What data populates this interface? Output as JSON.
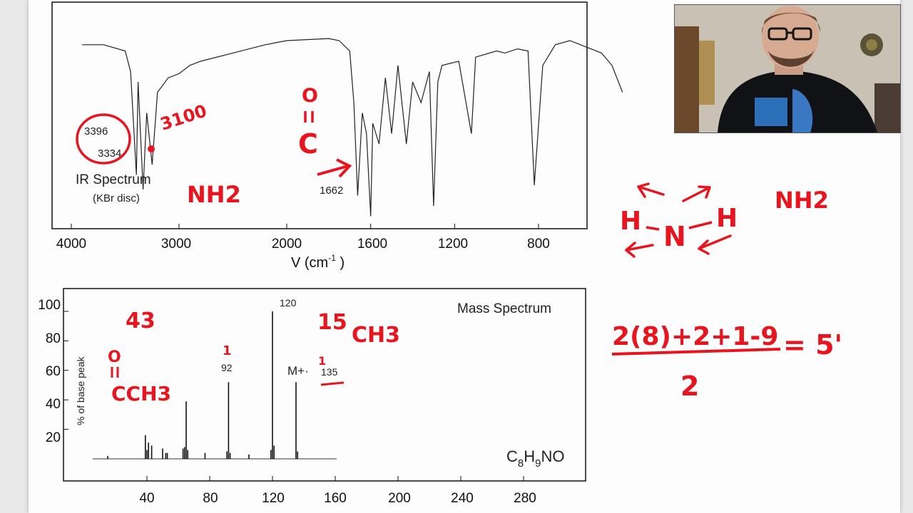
{
  "colors": {
    "ink": "#e8141e",
    "axis": "#111111",
    "spectrum": "#222222",
    "paper": "#fdfdfd"
  },
  "ir": {
    "title": "IR Spectrum",
    "subtitle": "(KBr disc)",
    "xlabel": "V (cm-1)",
    "ticks": [
      "4000",
      "3000",
      "2000",
      "1600",
      "1200",
      "800"
    ],
    "peak_labels": [
      "3396",
      "3334",
      "1662"
    ]
  },
  "ms": {
    "title": "Mass Spectrum",
    "formula_main": "C",
    "formula_sub1": "8",
    "formula_mid": "H",
    "formula_sub2": "9",
    "formula_end": "NO",
    "ylabel": "% of base peak",
    "yticks": [
      "100",
      "80",
      "60",
      "40",
      "20"
    ],
    "xticks": [
      "40",
      "80",
      "120",
      "160",
      "200",
      "240",
      "280"
    ],
    "peak_labels": [
      "120",
      "92",
      "M+·",
      "135"
    ]
  },
  "annotations": {
    "ir_3100": "3100",
    "ir_nh2": "NH2",
    "carbonyl_o": "O",
    "carbonyl_c": "C",
    "ms_43": "43",
    "ms_15": "15",
    "ms_ch3": "CH3",
    "ms_o": "O",
    "ms_cch3": "CCH3",
    "ms_1a": "1",
    "ms_1b": "1",
    "amine_h1": "H",
    "amine_n": "N",
    "amine_h2": "H",
    "amine_nh2": "NH2",
    "dou_numerator": "2(8)+2+1-9",
    "dou_result": "= 5'",
    "dou_denominator": "2"
  },
  "chart_data": [
    {
      "type": "line",
      "title": "IR Spectrum",
      "subtitle": "(KBr disc)",
      "xlabel": "V (cm-1)",
      "xlim": [
        4000,
        400
      ],
      "x_scale": "two-segment (4000-2000 compressed, 2000-400 expanded)",
      "x_ticks": [
        4000,
        3000,
        2000,
        1600,
        1200,
        800
      ],
      "ylabel": "",
      "ylim": [
        0,
        100
      ],
      "series": [
        {
          "x": [
            3900,
            3700,
            3500,
            3450,
            3396,
            3380,
            3334,
            3300,
            3250,
            3200,
            3100,
            3000,
            2900,
            2800,
            2500,
            2200,
            2000,
            1800,
            1750,
            1700,
            1680,
            1662,
            1640,
            1620,
            1600,
            1590,
            1560,
            1530,
            1500,
            1470,
            1430,
            1400,
            1360,
            1320,
            1300,
            1280,
            1260,
            1180,
            1120,
            1100,
            1000,
            960,
            900,
            850,
            820,
            780,
            720,
            650,
            600,
            550,
            500,
            450,
            400
          ],
          "y": [
            88,
            88,
            85,
            75,
            25,
            70,
            18,
            55,
            30,
            65,
            72,
            74,
            78,
            80,
            84,
            88,
            90,
            91,
            90,
            85,
            60,
            15,
            55,
            45,
            5,
            50,
            40,
            72,
            45,
            78,
            40,
            70,
            60,
            75,
            10,
            70,
            78,
            80,
            45,
            82,
            85,
            84,
            86,
            85,
            20,
            78,
            88,
            90,
            88,
            86,
            84,
            78,
            65
          ]
        }
      ],
      "peak_labels": [
        3396,
        3334,
        1662
      ]
    },
    {
      "type": "bar",
      "title": "Mass Spectrum",
      "xlabel": "",
      "ylabel": "% of base peak",
      "xlim": [
        0,
        320
      ],
      "ylim": [
        0,
        100
      ],
      "x_ticks": [
        40,
        80,
        120,
        160,
        200,
        240,
        280
      ],
      "y_ticks": [
        20,
        40,
        60,
        80,
        100
      ],
      "formula": "C8H9NO",
      "series": [
        {
          "x": [
            15,
            39,
            40,
            41,
            43,
            50,
            52,
            53,
            63,
            64,
            65,
            66,
            77,
            91,
            92,
            93,
            105,
            119,
            120,
            121,
            135,
            136
          ],
          "y": [
            2,
            16,
            6,
            11,
            9,
            7,
            4,
            4,
            7,
            8,
            39,
            6,
            4,
            5,
            52,
            4,
            3,
            6,
            100,
            9,
            52,
            5
          ]
        }
      ],
      "peak_labels": [
        120,
        92,
        135
      ]
    }
  ]
}
